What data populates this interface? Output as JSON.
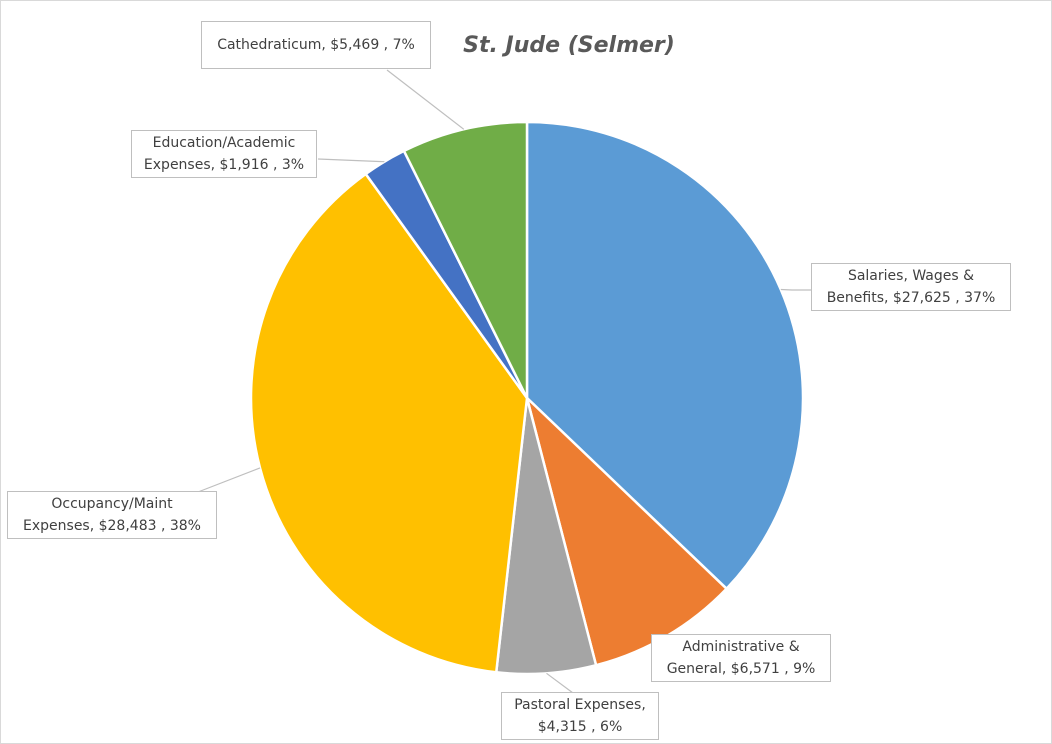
{
  "chart_data": {
    "type": "pie",
    "title": "St. Jude (Selmer)",
    "start_angle_deg": 0,
    "direction": "clockwise",
    "slices": [
      {
        "category": "Salaries, Wages & Benefits",
        "value": 27625,
        "value_label": "$27,625",
        "percent_label": "37%",
        "color": "#5b9bd5"
      },
      {
        "category": "Administrative & General",
        "value": 6571,
        "value_label": "$6,571",
        "percent_label": "9%",
        "color": "#ed7d31"
      },
      {
        "category": "Pastoral Expenses",
        "value": 4315,
        "value_label": "$4,315",
        "percent_label": "6%",
        "color": "#a5a5a5"
      },
      {
        "category": "Occupancy/Maint Expenses",
        "value": 28483,
        "value_label": "$28,483",
        "percent_label": "38%",
        "color": "#ffc000"
      },
      {
        "category": "Education/Academic Expenses",
        "value": 1916,
        "value_label": "$1,916",
        "percent_label": "3%",
        "color": "#4472c4"
      },
      {
        "category": "Cathedraticum",
        "value": 5469,
        "value_label": "$5,469",
        "percent_label": "7%",
        "color": "#70ad47"
      }
    ],
    "labels": [
      {
        "line1": "Salaries, Wages &",
        "line2": "Benefits,  $27,625 , 37%"
      },
      {
        "line1": "Administrative &",
        "line2": "General,  $6,571 , 9%"
      },
      {
        "line1": "Pastoral Expenses,",
        "line2": "$4,315 , 6%"
      },
      {
        "line1": "Occupancy/Maint",
        "line2": "Expenses,  $28,483 , 38%"
      },
      {
        "line1": "Education/Academic",
        "line2": "Expenses,  $1,916 , 3%"
      },
      {
        "line1": "Cathedraticum,  $5,469 , 7%",
        "line2": ""
      }
    ]
  }
}
